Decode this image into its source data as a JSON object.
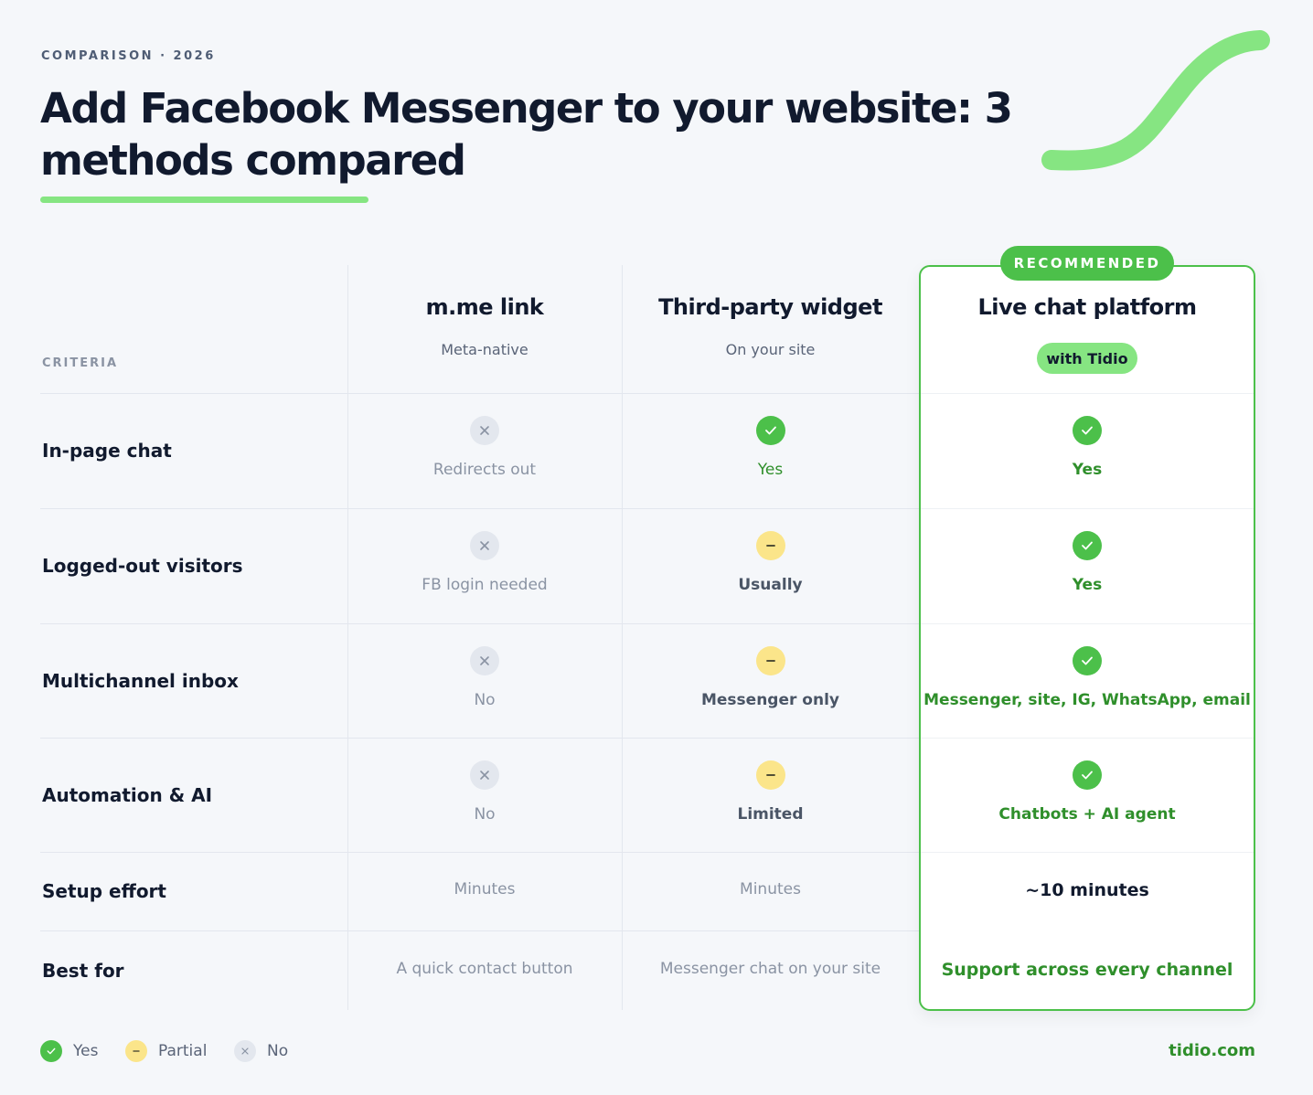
{
  "header": {
    "eyebrow": "COMPARISON · 2026",
    "title": "Add Facebook Messenger to your website: 3 methods compared"
  },
  "table": {
    "criteria_label": "CRITERIA",
    "columns": [
      {
        "name": "m.me link",
        "subtitle": "Meta-native"
      },
      {
        "name": "Third-party widget",
        "subtitle": "On your site"
      },
      {
        "name": "Live chat platform",
        "badge": "RECOMMENDED",
        "tag": "with Tidio"
      }
    ],
    "rows": [
      {
        "label": "In-page chat",
        "cells": [
          {
            "status": "no",
            "text": "Redirects out",
            "color": "#8a93a3"
          },
          {
            "status": "yes",
            "text": "Yes",
            "color": "#2f8f2b"
          },
          {
            "status": "yes",
            "text": "Yes",
            "color": "#2f8f2b"
          }
        ]
      },
      {
        "label": "Logged-out visitors",
        "cells": [
          {
            "status": "no",
            "text": "FB login needed",
            "color": "#8a93a3"
          },
          {
            "status": "partial",
            "text": "Usually",
            "color": "#4a5566"
          },
          {
            "status": "yes",
            "text": "Yes",
            "color": "#2f8f2b"
          }
        ]
      },
      {
        "label": "Multichannel inbox",
        "cells": [
          {
            "status": "no",
            "text": "No",
            "color": "#8a93a3"
          },
          {
            "status": "partial",
            "text": "Messenger only",
            "color": "#4a5566"
          },
          {
            "status": "yes",
            "text": "Messenger, site, IG, WhatsApp, email",
            "color": "#2f8f2b"
          }
        ]
      },
      {
        "label": "Automation & AI",
        "cells": [
          {
            "status": "no",
            "text": "No",
            "color": "#8a93a3"
          },
          {
            "status": "partial",
            "text": "Limited",
            "color": "#4a5566"
          },
          {
            "status": "yes",
            "text": "Chatbots + AI agent",
            "color": "#2f8f2b"
          }
        ]
      },
      {
        "label": "Setup effort",
        "cells": [
          {
            "text": "Minutes",
            "color": "#8a93a3"
          },
          {
            "text": "Minutes",
            "color": "#8a93a3"
          },
          {
            "text": "~10 minutes",
            "color": "#111a2e"
          }
        ]
      },
      {
        "label": "Best for",
        "cells": [
          {
            "text": "A quick contact button",
            "color": "#8a93a3"
          },
          {
            "text": "Messenger chat on your site",
            "color": "#8a93a3"
          },
          {
            "text": "Support across every channel",
            "color": "#2f8f2b"
          }
        ]
      }
    ]
  },
  "legend": [
    {
      "status": "yes",
      "label": "Yes"
    },
    {
      "status": "partial",
      "label": "Partial"
    },
    {
      "status": "no",
      "label": "No"
    }
  ],
  "footer": {
    "site": "tidio.com"
  }
}
